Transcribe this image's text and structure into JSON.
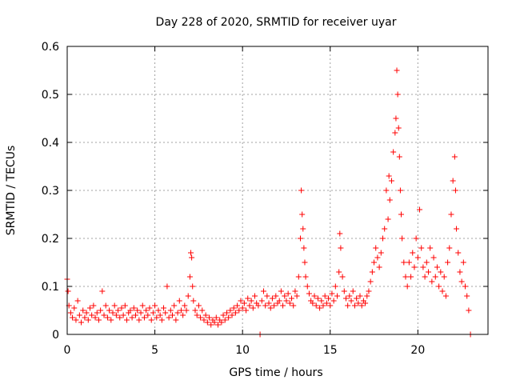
{
  "chart_data": {
    "type": "scatter",
    "title": "Day 228 of 2020, SRMTID for receiver uyar",
    "xlabel": "GPS time / hours",
    "ylabel": "SRMTID / TECUs",
    "xlim": [
      0,
      24
    ],
    "ylim": [
      0,
      0.6
    ],
    "xticks": [
      0,
      5,
      10,
      15,
      20
    ],
    "xtick_labels": [
      "0",
      "5",
      "10",
      "15",
      "20"
    ],
    "yticks": [
      0,
      0.1,
      0.2,
      0.3,
      0.4,
      0.5,
      0.6
    ],
    "ytick_labels": [
      "0",
      "0.1",
      "0.2",
      "0.3",
      "0.4",
      "0.5",
      "0.6"
    ],
    "grid": true,
    "marker": "+",
    "series": [
      {
        "name": "SRMTID",
        "color": "#ff0000",
        "points": [
          [
            0.0,
            0.115
          ],
          [
            0.05,
            0.09
          ],
          [
            0.1,
            0.06
          ],
          [
            0.2,
            0.045
          ],
          [
            0.3,
            0.035
          ],
          [
            0.4,
            0.055
          ],
          [
            0.5,
            0.03
          ],
          [
            0.6,
            0.07
          ],
          [
            0.7,
            0.04
          ],
          [
            0.8,
            0.025
          ],
          [
            0.9,
            0.05
          ],
          [
            1.0,
            0.035
          ],
          [
            1.1,
            0.045
          ],
          [
            1.2,
            0.03
          ],
          [
            1.3,
            0.055
          ],
          [
            1.4,
            0.04
          ],
          [
            1.5,
            0.06
          ],
          [
            1.6,
            0.035
          ],
          [
            1.7,
            0.045
          ],
          [
            1.8,
            0.03
          ],
          [
            1.9,
            0.05
          ],
          [
            2.0,
            0.09
          ],
          [
            2.1,
            0.04
          ],
          [
            2.2,
            0.06
          ],
          [
            2.3,
            0.035
          ],
          [
            2.4,
            0.05
          ],
          [
            2.5,
            0.03
          ],
          [
            2.6,
            0.045
          ],
          [
            2.7,
            0.06
          ],
          [
            2.8,
            0.04
          ],
          [
            2.9,
            0.05
          ],
          [
            3.0,
            0.035
          ],
          [
            3.1,
            0.055
          ],
          [
            3.2,
            0.04
          ],
          [
            3.3,
            0.06
          ],
          [
            3.4,
            0.03
          ],
          [
            3.5,
            0.045
          ],
          [
            3.6,
            0.05
          ],
          [
            3.7,
            0.035
          ],
          [
            3.8,
            0.055
          ],
          [
            3.9,
            0.04
          ],
          [
            4.0,
            0.05
          ],
          [
            4.1,
            0.03
          ],
          [
            4.2,
            0.045
          ],
          [
            4.3,
            0.06
          ],
          [
            4.4,
            0.035
          ],
          [
            4.5,
            0.05
          ],
          [
            4.6,
            0.04
          ],
          [
            4.7,
            0.055
          ],
          [
            4.8,
            0.03
          ],
          [
            4.9,
            0.045
          ],
          [
            5.0,
            0.06
          ],
          [
            5.1,
            0.035
          ],
          [
            5.2,
            0.05
          ],
          [
            5.3,
            0.04
          ],
          [
            5.4,
            0.03
          ],
          [
            5.5,
            0.055
          ],
          [
            5.6,
            0.045
          ],
          [
            5.7,
            0.1
          ],
          [
            5.8,
            0.035
          ],
          [
            5.9,
            0.05
          ],
          [
            6.0,
            0.04
          ],
          [
            6.1,
            0.06
          ],
          [
            6.2,
            0.03
          ],
          [
            6.3,
            0.045
          ],
          [
            6.4,
            0.07
          ],
          [
            6.5,
            0.05
          ],
          [
            6.6,
            0.04
          ],
          [
            6.7,
            0.06
          ],
          [
            6.8,
            0.05
          ],
          [
            6.9,
            0.08
          ],
          [
            7.0,
            0.12
          ],
          [
            7.05,
            0.17
          ],
          [
            7.1,
            0.16
          ],
          [
            7.15,
            0.1
          ],
          [
            7.2,
            0.07
          ],
          [
            7.3,
            0.05
          ],
          [
            7.4,
            0.04
          ],
          [
            7.5,
            0.06
          ],
          [
            7.6,
            0.035
          ],
          [
            7.7,
            0.05
          ],
          [
            7.8,
            0.03
          ],
          [
            7.9,
            0.04
          ],
          [
            8.0,
            0.025
          ],
          [
            8.1,
            0.035
          ],
          [
            8.2,
            0.02
          ],
          [
            8.3,
            0.03
          ],
          [
            8.4,
            0.025
          ],
          [
            8.5,
            0.035
          ],
          [
            8.6,
            0.02
          ],
          [
            8.7,
            0.03
          ],
          [
            8.8,
            0.025
          ],
          [
            8.9,
            0.04
          ],
          [
            9.0,
            0.03
          ],
          [
            9.1,
            0.045
          ],
          [
            9.2,
            0.035
          ],
          [
            9.3,
            0.05
          ],
          [
            9.4,
            0.04
          ],
          [
            9.5,
            0.055
          ],
          [
            9.6,
            0.045
          ],
          [
            9.7,
            0.06
          ],
          [
            9.8,
            0.05
          ],
          [
            9.9,
            0.07
          ],
          [
            10.0,
            0.055
          ],
          [
            10.1,
            0.065
          ],
          [
            10.2,
            0.05
          ],
          [
            10.3,
            0.075
          ],
          [
            10.4,
            0.06
          ],
          [
            10.5,
            0.07
          ],
          [
            10.6,
            0.055
          ],
          [
            10.7,
            0.08
          ],
          [
            10.8,
            0.065
          ],
          [
            10.9,
            0.06
          ],
          [
            11.0,
            0.0
          ],
          [
            11.1,
            0.07
          ],
          [
            11.2,
            0.09
          ],
          [
            11.3,
            0.06
          ],
          [
            11.4,
            0.08
          ],
          [
            11.5,
            0.065
          ],
          [
            11.6,
            0.055
          ],
          [
            11.7,
            0.075
          ],
          [
            11.8,
            0.06
          ],
          [
            11.9,
            0.08
          ],
          [
            12.0,
            0.065
          ],
          [
            12.1,
            0.07
          ],
          [
            12.2,
            0.09
          ],
          [
            12.3,
            0.06
          ],
          [
            12.4,
            0.08
          ],
          [
            12.5,
            0.07
          ],
          [
            12.6,
            0.085
          ],
          [
            12.7,
            0.065
          ],
          [
            12.8,
            0.075
          ],
          [
            12.9,
            0.06
          ],
          [
            13.0,
            0.09
          ],
          [
            13.1,
            0.08
          ],
          [
            13.2,
            0.12
          ],
          [
            13.3,
            0.2
          ],
          [
            13.35,
            0.3
          ],
          [
            13.4,
            0.25
          ],
          [
            13.45,
            0.22
          ],
          [
            13.5,
            0.18
          ],
          [
            13.55,
            0.15
          ],
          [
            13.6,
            0.12
          ],
          [
            13.7,
            0.1
          ],
          [
            13.8,
            0.085
          ],
          [
            13.9,
            0.07
          ],
          [
            14.0,
            0.065
          ],
          [
            14.1,
            0.08
          ],
          [
            14.2,
            0.06
          ],
          [
            14.3,
            0.075
          ],
          [
            14.4,
            0.055
          ],
          [
            14.5,
            0.07
          ],
          [
            14.6,
            0.06
          ],
          [
            14.7,
            0.08
          ],
          [
            14.8,
            0.065
          ],
          [
            14.9,
            0.075
          ],
          [
            15.0,
            0.06
          ],
          [
            15.1,
            0.085
          ],
          [
            15.2,
            0.07
          ],
          [
            15.3,
            0.1
          ],
          [
            15.4,
            0.08
          ],
          [
            15.5,
            0.13
          ],
          [
            15.55,
            0.21
          ],
          [
            15.6,
            0.18
          ],
          [
            15.7,
            0.12
          ],
          [
            15.8,
            0.09
          ],
          [
            15.9,
            0.075
          ],
          [
            16.0,
            0.06
          ],
          [
            16.1,
            0.08
          ],
          [
            16.2,
            0.07
          ],
          [
            16.3,
            0.09
          ],
          [
            16.4,
            0.06
          ],
          [
            16.5,
            0.075
          ],
          [
            16.6,
            0.065
          ],
          [
            16.7,
            0.08
          ],
          [
            16.8,
            0.06
          ],
          [
            16.9,
            0.07
          ],
          [
            17.0,
            0.065
          ],
          [
            17.1,
            0.08
          ],
          [
            17.2,
            0.09
          ],
          [
            17.3,
            0.11
          ],
          [
            17.4,
            0.13
          ],
          [
            17.5,
            0.15
          ],
          [
            17.6,
            0.18
          ],
          [
            17.7,
            0.16
          ],
          [
            17.8,
            0.14
          ],
          [
            17.9,
            0.17
          ],
          [
            18.0,
            0.2
          ],
          [
            18.1,
            0.22
          ],
          [
            18.2,
            0.3
          ],
          [
            18.3,
            0.24
          ],
          [
            18.35,
            0.33
          ],
          [
            18.4,
            0.28
          ],
          [
            18.5,
            0.32
          ],
          [
            18.6,
            0.38
          ],
          [
            18.7,
            0.42
          ],
          [
            18.75,
            0.45
          ],
          [
            18.8,
            0.55
          ],
          [
            18.85,
            0.5
          ],
          [
            18.9,
            0.43
          ],
          [
            18.95,
            0.37
          ],
          [
            19.0,
            0.3
          ],
          [
            19.05,
            0.25
          ],
          [
            19.1,
            0.2
          ],
          [
            19.2,
            0.15
          ],
          [
            19.3,
            0.12
          ],
          [
            19.4,
            0.1
          ],
          [
            19.5,
            0.15
          ],
          [
            19.6,
            0.12
          ],
          [
            19.7,
            0.17
          ],
          [
            19.8,
            0.14
          ],
          [
            19.9,
            0.2
          ],
          [
            20.0,
            0.16
          ],
          [
            20.1,
            0.26
          ],
          [
            20.2,
            0.18
          ],
          [
            20.3,
            0.14
          ],
          [
            20.4,
            0.12
          ],
          [
            20.5,
            0.15
          ],
          [
            20.6,
            0.13
          ],
          [
            20.7,
            0.18
          ],
          [
            20.8,
            0.11
          ],
          [
            20.9,
            0.16
          ],
          [
            21.0,
            0.12
          ],
          [
            21.1,
            0.14
          ],
          [
            21.2,
            0.1
          ],
          [
            21.3,
            0.13
          ],
          [
            21.4,
            0.09
          ],
          [
            21.5,
            0.12
          ],
          [
            21.6,
            0.08
          ],
          [
            21.7,
            0.15
          ],
          [
            21.8,
            0.18
          ],
          [
            21.9,
            0.25
          ],
          [
            22.0,
            0.32
          ],
          [
            22.1,
            0.37
          ],
          [
            22.15,
            0.3
          ],
          [
            22.2,
            0.22
          ],
          [
            22.3,
            0.17
          ],
          [
            22.4,
            0.13
          ],
          [
            22.5,
            0.11
          ],
          [
            22.6,
            0.15
          ],
          [
            22.7,
            0.1
          ],
          [
            22.8,
            0.08
          ],
          [
            22.9,
            0.05
          ],
          [
            23.0,
            0.0
          ]
        ]
      }
    ]
  }
}
